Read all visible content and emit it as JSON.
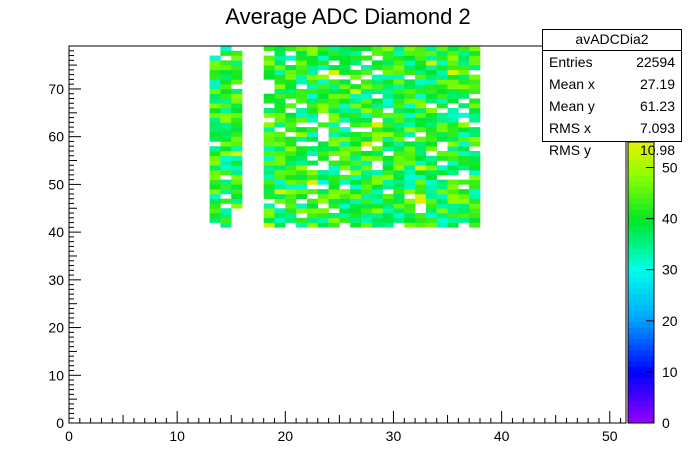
{
  "chart_data": {
    "type": "heatmap",
    "title": "Average ADC Diamond 2",
    "xlim": [
      0,
      51.5
    ],
    "ylim": [
      0,
      79
    ],
    "x_ticks": [
      0,
      10,
      20,
      30,
      40,
      50
    ],
    "y_ticks": [
      0,
      10,
      20,
      30,
      40,
      50,
      60,
      70
    ],
    "colorbar": {
      "range": [
        0,
        55
      ],
      "ticks": [
        0,
        10,
        20,
        30,
        40,
        50
      ]
    },
    "stats": {
      "name": "avADCDia2",
      "rows": [
        {
          "label": "Entries",
          "value": "22594"
        },
        {
          "label": "Mean x",
          "value": "27.19"
        },
        {
          "label": "Mean y",
          "value": "61.23"
        },
        {
          "label": "RMS x",
          "value": "7.093"
        },
        {
          "label": "RMS y",
          "value": "10.98"
        }
      ]
    },
    "filled_region": {
      "x_bins": [
        [
          13,
          16
        ],
        [
          18,
          38
        ]
      ],
      "y_range": [
        41,
        79
      ],
      "typical_value": 40
    }
  }
}
